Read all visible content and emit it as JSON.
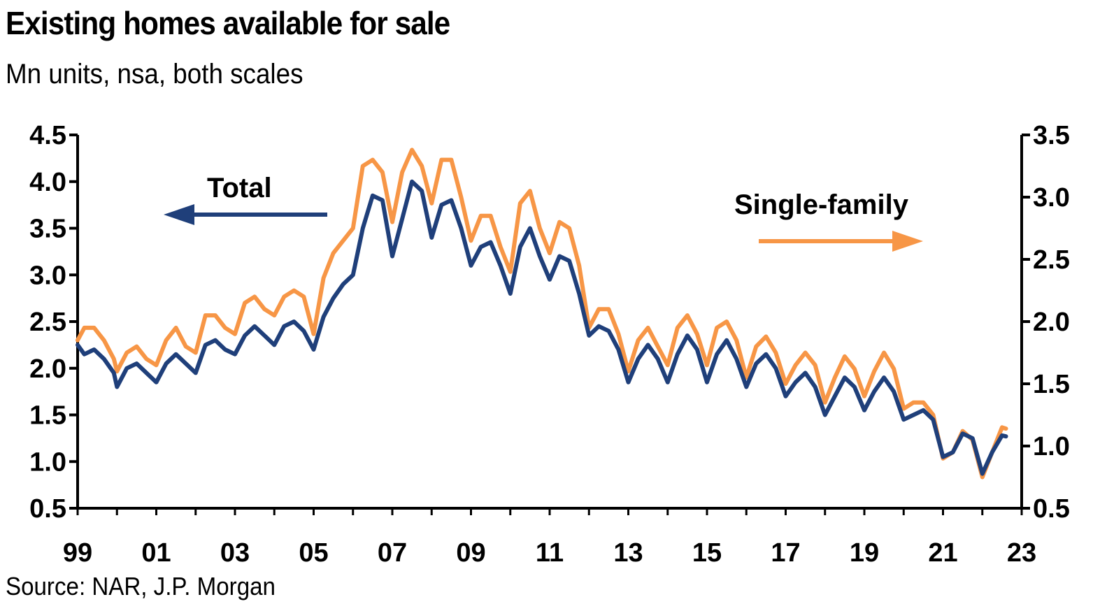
{
  "chart_data": {
    "type": "line",
    "title": "Existing homes available for sale",
    "subtitle": "Mn units, nsa, both scales",
    "source": "Source: NAR, J.P. Morgan",
    "x_ticks": [
      "99",
      "01",
      "03",
      "05",
      "07",
      "09",
      "11",
      "13",
      "15",
      "17",
      "19",
      "21",
      "23"
    ],
    "x_range": [
      1999.0,
      2023.0
    ],
    "y_left": {
      "range": [
        0.5,
        4.5
      ],
      "ticks": [
        "0.5",
        "1.0",
        "1.5",
        "2.0",
        "2.5",
        "3.0",
        "3.5",
        "4.0",
        "4.5"
      ]
    },
    "y_right": {
      "range": [
        0.5,
        3.5
      ],
      "ticks": [
        "0.5",
        "1.0",
        "1.5",
        "2.0",
        "2.5",
        "3.0",
        "3.5"
      ]
    },
    "colors": {
      "total": "#1f3f7a",
      "single_family": "#f79646"
    },
    "annotations": {
      "total": "Total",
      "single_family": "Single-family"
    },
    "series": [
      {
        "name": "Total",
        "axis": "left",
        "points": [
          [
            1999.0,
            2.25
          ],
          [
            1999.17,
            2.15
          ],
          [
            1999.42,
            2.2
          ],
          [
            1999.67,
            2.1
          ],
          [
            1999.92,
            1.95
          ],
          [
            2000.0,
            1.8
          ],
          [
            2000.25,
            2.0
          ],
          [
            2000.5,
            2.05
          ],
          [
            2000.75,
            1.95
          ],
          [
            2001.0,
            1.85
          ],
          [
            2001.25,
            2.05
          ],
          [
            2001.5,
            2.15
          ],
          [
            2001.75,
            2.05
          ],
          [
            2002.0,
            1.95
          ],
          [
            2002.25,
            2.25
          ],
          [
            2002.5,
            2.3
          ],
          [
            2002.75,
            2.2
          ],
          [
            2003.0,
            2.15
          ],
          [
            2003.25,
            2.35
          ],
          [
            2003.5,
            2.45
          ],
          [
            2003.75,
            2.35
          ],
          [
            2004.0,
            2.25
          ],
          [
            2004.25,
            2.45
          ],
          [
            2004.5,
            2.5
          ],
          [
            2004.75,
            2.4
          ],
          [
            2005.0,
            2.2
          ],
          [
            2005.25,
            2.55
          ],
          [
            2005.5,
            2.75
          ],
          [
            2005.75,
            2.9
          ],
          [
            2006.0,
            3.0
          ],
          [
            2006.25,
            3.5
          ],
          [
            2006.5,
            3.85
          ],
          [
            2006.75,
            3.8
          ],
          [
            2007.0,
            3.2
          ],
          [
            2007.25,
            3.6
          ],
          [
            2007.5,
            4.0
          ],
          [
            2007.75,
            3.9
          ],
          [
            2008.0,
            3.4
          ],
          [
            2008.25,
            3.75
          ],
          [
            2008.5,
            3.8
          ],
          [
            2008.75,
            3.5
          ],
          [
            2009.0,
            3.1
          ],
          [
            2009.25,
            3.3
          ],
          [
            2009.5,
            3.35
          ],
          [
            2009.75,
            3.1
          ],
          [
            2010.0,
            2.8
          ],
          [
            2010.25,
            3.3
          ],
          [
            2010.5,
            3.5
          ],
          [
            2010.75,
            3.2
          ],
          [
            2011.0,
            2.95
          ],
          [
            2011.25,
            3.2
          ],
          [
            2011.5,
            3.15
          ],
          [
            2011.75,
            2.8
          ],
          [
            2012.0,
            2.35
          ],
          [
            2012.25,
            2.45
          ],
          [
            2012.5,
            2.4
          ],
          [
            2012.75,
            2.2
          ],
          [
            2013.0,
            1.85
          ],
          [
            2013.25,
            2.1
          ],
          [
            2013.5,
            2.25
          ],
          [
            2013.75,
            2.1
          ],
          [
            2014.0,
            1.85
          ],
          [
            2014.25,
            2.15
          ],
          [
            2014.5,
            2.35
          ],
          [
            2014.75,
            2.2
          ],
          [
            2015.0,
            1.85
          ],
          [
            2015.25,
            2.15
          ],
          [
            2015.5,
            2.3
          ],
          [
            2015.75,
            2.1
          ],
          [
            2016.0,
            1.8
          ],
          [
            2016.25,
            2.05
          ],
          [
            2016.5,
            2.15
          ],
          [
            2016.75,
            2.0
          ],
          [
            2017.0,
            1.7
          ],
          [
            2017.25,
            1.85
          ],
          [
            2017.5,
            1.95
          ],
          [
            2017.75,
            1.8
          ],
          [
            2018.0,
            1.5
          ],
          [
            2018.25,
            1.7
          ],
          [
            2018.5,
            1.9
          ],
          [
            2018.75,
            1.8
          ],
          [
            2019.0,
            1.55
          ],
          [
            2019.25,
            1.75
          ],
          [
            2019.5,
            1.9
          ],
          [
            2019.75,
            1.75
          ],
          [
            2020.0,
            1.45
          ],
          [
            2020.25,
            1.5
          ],
          [
            2020.5,
            1.55
          ],
          [
            2020.75,
            1.45
          ],
          [
            2021.0,
            1.05
          ],
          [
            2021.25,
            1.1
          ],
          [
            2021.5,
            1.3
          ],
          [
            2021.75,
            1.25
          ],
          [
            2022.0,
            0.87
          ],
          [
            2022.25,
            1.1
          ],
          [
            2022.5,
            1.28
          ],
          [
            2022.6,
            1.27
          ]
        ]
      },
      {
        "name": "Single-family",
        "axis": "right",
        "points": [
          [
            1999.0,
            1.85
          ],
          [
            1999.17,
            1.95
          ],
          [
            1999.42,
            1.95
          ],
          [
            1999.67,
            1.85
          ],
          [
            1999.92,
            1.7
          ],
          [
            2000.0,
            1.6
          ],
          [
            2000.25,
            1.75
          ],
          [
            2000.5,
            1.8
          ],
          [
            2000.75,
            1.7
          ],
          [
            2001.0,
            1.65
          ],
          [
            2001.25,
            1.85
          ],
          [
            2001.5,
            1.95
          ],
          [
            2001.75,
            1.8
          ],
          [
            2002.0,
            1.75
          ],
          [
            2002.25,
            2.05
          ],
          [
            2002.5,
            2.05
          ],
          [
            2002.75,
            1.95
          ],
          [
            2003.0,
            1.9
          ],
          [
            2003.25,
            2.15
          ],
          [
            2003.5,
            2.2
          ],
          [
            2003.75,
            2.1
          ],
          [
            2004.0,
            2.05
          ],
          [
            2004.25,
            2.2
          ],
          [
            2004.5,
            2.25
          ],
          [
            2004.75,
            2.2
          ],
          [
            2005.0,
            1.9
          ],
          [
            2005.25,
            2.35
          ],
          [
            2005.5,
            2.55
          ],
          [
            2005.75,
            2.65
          ],
          [
            2006.0,
            2.75
          ],
          [
            2006.25,
            3.25
          ],
          [
            2006.5,
            3.3
          ],
          [
            2006.75,
            3.2
          ],
          [
            2007.0,
            2.8
          ],
          [
            2007.25,
            3.2
          ],
          [
            2007.5,
            3.38
          ],
          [
            2007.75,
            3.25
          ],
          [
            2008.0,
            2.95
          ],
          [
            2008.25,
            3.3
          ],
          [
            2008.5,
            3.3
          ],
          [
            2008.75,
            3.0
          ],
          [
            2009.0,
            2.65
          ],
          [
            2009.25,
            2.85
          ],
          [
            2009.5,
            2.85
          ],
          [
            2009.75,
            2.6
          ],
          [
            2010.0,
            2.4
          ],
          [
            2010.25,
            2.95
          ],
          [
            2010.5,
            3.05
          ],
          [
            2010.75,
            2.75
          ],
          [
            2011.0,
            2.55
          ],
          [
            2011.25,
            2.8
          ],
          [
            2011.5,
            2.75
          ],
          [
            2011.75,
            2.45
          ],
          [
            2012.0,
            1.95
          ],
          [
            2012.25,
            2.1
          ],
          [
            2012.5,
            2.1
          ],
          [
            2012.75,
            1.9
          ],
          [
            2013.0,
            1.6
          ],
          [
            2013.25,
            1.85
          ],
          [
            2013.5,
            1.95
          ],
          [
            2013.75,
            1.8
          ],
          [
            2014.0,
            1.65
          ],
          [
            2014.25,
            1.95
          ],
          [
            2014.5,
            2.05
          ],
          [
            2014.75,
            1.9
          ],
          [
            2015.0,
            1.65
          ],
          [
            2015.25,
            1.95
          ],
          [
            2015.5,
            2.0
          ],
          [
            2015.75,
            1.85
          ],
          [
            2016.0,
            1.55
          ],
          [
            2016.25,
            1.8
          ],
          [
            2016.5,
            1.88
          ],
          [
            2016.75,
            1.75
          ],
          [
            2017.0,
            1.5
          ],
          [
            2017.25,
            1.65
          ],
          [
            2017.5,
            1.75
          ],
          [
            2017.75,
            1.65
          ],
          [
            2018.0,
            1.35
          ],
          [
            2018.25,
            1.55
          ],
          [
            2018.5,
            1.72
          ],
          [
            2018.75,
            1.62
          ],
          [
            2019.0,
            1.4
          ],
          [
            2019.25,
            1.6
          ],
          [
            2019.5,
            1.75
          ],
          [
            2019.75,
            1.62
          ],
          [
            2020.0,
            1.3
          ],
          [
            2020.25,
            1.35
          ],
          [
            2020.5,
            1.35
          ],
          [
            2020.75,
            1.25
          ],
          [
            2021.0,
            0.9
          ],
          [
            2021.25,
            0.95
          ],
          [
            2021.5,
            1.12
          ],
          [
            2021.75,
            1.05
          ],
          [
            2022.0,
            0.75
          ],
          [
            2022.25,
            0.95
          ],
          [
            2022.5,
            1.15
          ],
          [
            2022.6,
            1.14
          ]
        ]
      }
    ]
  }
}
